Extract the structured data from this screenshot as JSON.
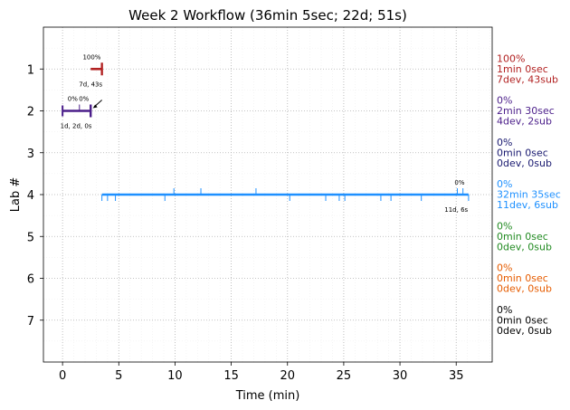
{
  "chart_data": {
    "type": "timeline",
    "title": "Week 2 Workflow (36min 5sec; 22d; 51s)",
    "xlabel": "Time (min)",
    "ylabel": "Lab #",
    "xlim": [
      -1.7,
      38.2
    ],
    "ylim": [
      8.0,
      0.0
    ],
    "xticks": [
      0,
      5,
      10,
      15,
      20,
      25,
      30,
      35
    ],
    "yticks": [
      1,
      2,
      3,
      4,
      5,
      6,
      7
    ],
    "grid": true,
    "lanes": [
      {
        "lab": 1,
        "color": "#b22222",
        "bar": [
          2.5,
          3.5
        ],
        "start_tick": null,
        "end_tick": 3.5,
        "markers_above": [],
        "markers_below": [],
        "pct_labels": [
          {
            "text": "100%",
            "x": 2.6
          }
        ],
        "below_label": {
          "text": "7d, 43s",
          "x": 2.5
        },
        "side": [
          "100%",
          "1min 0sec",
          "7dev, 43sub"
        ]
      },
      {
        "lab": 2,
        "color": "#4b1e8a",
        "bar": [
          0.0,
          2.5
        ],
        "start_tick": 0.0,
        "end_tick": 2.5,
        "markers_above": [
          1.5
        ],
        "markers_below": [],
        "pct_labels": [
          {
            "text": "0%",
            "x": 0.9
          },
          {
            "text": "0%",
            "x": 1.9
          }
        ],
        "below_label": {
          "text": "1d, 2d, 0s",
          "x": 1.2
        },
        "arrow": {
          "from_x": 3.5,
          "to_x": 2.7
        },
        "side": [
          "0%",
          "2min 30sec",
          "4dev, 2sub"
        ]
      },
      {
        "lab": 3,
        "color": "#191970",
        "bar": null,
        "start_tick": null,
        "end_tick": null,
        "markers_above": [],
        "markers_below": [],
        "pct_labels": [],
        "below_label": null,
        "side": [
          "0%",
          "0min 0sec",
          "0dev, 0sub"
        ]
      },
      {
        "lab": 4,
        "color": "#1e90ff",
        "bar": [
          3.5,
          36.1
        ],
        "start_tick": null,
        "end_tick": null,
        "markers_above": [
          9.9,
          12.3,
          17.2,
          35.1,
          35.6
        ],
        "markers_below": [
          3.5,
          4.0,
          4.7,
          9.1,
          20.2,
          23.4,
          24.6,
          25.1,
          28.3,
          29.2,
          31.9,
          36.1
        ],
        "pct_labels": [
          {
            "text": "0%",
            "x": 35.3
          }
        ],
        "below_label": {
          "text": "11d, 6s",
          "x": 35.0
        },
        "side": [
          "0%",
          "32min 35sec",
          "11dev, 6sub"
        ]
      },
      {
        "lab": 5,
        "color": "#228b22",
        "bar": null,
        "start_tick": null,
        "end_tick": null,
        "markers_above": [],
        "markers_below": [],
        "pct_labels": [],
        "below_label": null,
        "side": [
          "0%",
          "0min 0sec",
          "0dev, 0sub"
        ]
      },
      {
        "lab": 6,
        "color": "#e65c00",
        "bar": null,
        "start_tick": null,
        "end_tick": null,
        "markers_above": [],
        "markers_below": [],
        "pct_labels": [],
        "below_label": null,
        "side": [
          "0%",
          "0min 0sec",
          "0dev, 0sub"
        ]
      },
      {
        "lab": 7,
        "color": "#000000",
        "bar": null,
        "start_tick": null,
        "end_tick": null,
        "markers_above": [],
        "markers_below": [],
        "pct_labels": [],
        "below_label": null,
        "side": [
          "0%",
          "0min 0sec",
          "0dev, 0sub"
        ]
      }
    ]
  }
}
